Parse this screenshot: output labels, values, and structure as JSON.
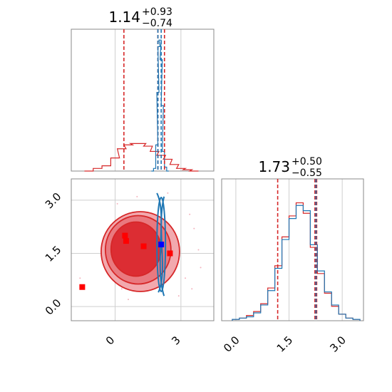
{
  "chart_data": [
    {
      "type": "histogram",
      "panel": "top-left 1D marginal",
      "title": {
        "median": "1.14",
        "plus": "+0.93",
        "minus": "−0.74"
      },
      "xlim": [
        -2.0,
        4.5
      ],
      "series": [
        {
          "color": "#d62728",
          "x": [
            -1.2,
            -0.8,
            -0.4,
            0.0,
            0.3,
            0.6,
            0.9,
            1.2,
            1.5,
            1.8,
            2.1,
            2.4,
            2.7,
            3.0,
            3.3,
            3.6
          ],
          "values": [
            0.0,
            0.02,
            0.04,
            0.1,
            0.17,
            0.2,
            0.21,
            0.21,
            0.19,
            0.15,
            0.12,
            0.09,
            0.05,
            0.02,
            0.01,
            0.0
          ],
          "lines": [
            0.4,
            1.95,
            2.25
          ]
        },
        {
          "color": "#1f77b4",
          "x": [
            1.7,
            1.8,
            1.9,
            1.95,
            2.0,
            2.05,
            2.1,
            2.15,
            2.2,
            2.3,
            2.4
          ],
          "values": [
            0.0,
            0.02,
            0.2,
            0.6,
            0.95,
            1.0,
            0.85,
            0.5,
            0.15,
            0.03,
            0.0
          ],
          "lines": [
            1.95,
            2.1
          ]
        }
      ]
    },
    {
      "type": "contour",
      "panel": "bottom-left 2D",
      "xlim": [
        -2.0,
        4.5
      ],
      "ylim": [
        -0.4,
        3.6
      ],
      "xticks": [
        "0",
        "3"
      ],
      "yticks": [
        "0.0",
        "1.5",
        "3.0"
      ],
      "markers": [
        {
          "color": "#ff0000",
          "points": [
            [
              -1.5,
              0.55
            ],
            [
              0.45,
              2.0
            ],
            [
              0.5,
              1.85
            ],
            [
              1.3,
              1.7
            ],
            [
              2.5,
              1.5
            ]
          ]
        },
        {
          "color": "#0000ff",
          "points": [
            [
              2.1,
              1.75
            ]
          ]
        }
      ]
    },
    {
      "type": "histogram",
      "panel": "bottom-right 1D marginal",
      "title": {
        "median": "1.73",
        "plus": "+0.50",
        "minus": "−0.55"
      },
      "xlim": [
        -0.4,
        3.6
      ],
      "xticks": [
        "0.0",
        "1.5",
        "3.0"
      ],
      "series": [
        {
          "color": "#d62728",
          "x": [
            0.0,
            0.2,
            0.4,
            0.6,
            0.8,
            1.0,
            1.2,
            1.4,
            1.6,
            1.8,
            2.0,
            2.2,
            2.4,
            2.6,
            2.8,
            3.0,
            3.2,
            3.4
          ],
          "values": [
            0.01,
            0.02,
            0.04,
            0.07,
            0.13,
            0.25,
            0.42,
            0.64,
            0.8,
            0.9,
            0.82,
            0.56,
            0.36,
            0.21,
            0.11,
            0.05,
            0.02,
            0.01
          ],
          "lines": [
            1.18,
            2.23,
            2.28
          ]
        },
        {
          "color": "#1f77b4",
          "x": [
            0.0,
            0.2,
            0.4,
            0.6,
            0.8,
            1.0,
            1.2,
            1.4,
            1.6,
            1.8,
            2.0,
            2.2,
            2.4,
            2.6,
            2.8,
            3.0,
            3.2,
            3.4
          ],
          "values": [
            0.01,
            0.02,
            0.03,
            0.06,
            0.12,
            0.23,
            0.4,
            0.62,
            0.78,
            0.88,
            0.84,
            0.58,
            0.38,
            0.22,
            0.12,
            0.05,
            0.02,
            0.01
          ],
          "lines": [
            2.26
          ]
        }
      ]
    }
  ]
}
